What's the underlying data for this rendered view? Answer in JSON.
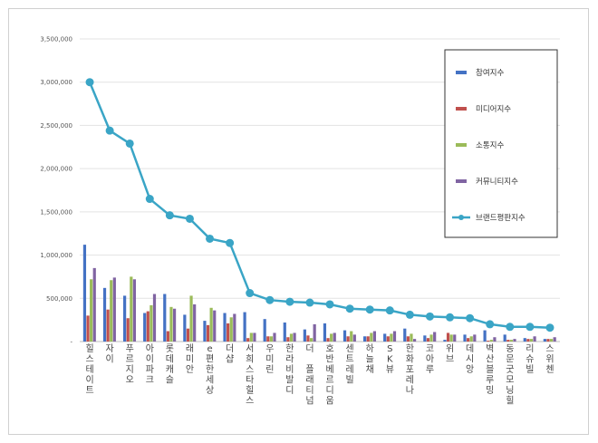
{
  "chart_data": {
    "type": "bar",
    "title": "",
    "xlabel": "",
    "ylabel": "",
    "ylim": [
      0,
      3500000
    ],
    "yticks": [
      "-",
      "500,000",
      "1,000,000",
      "1,500,000",
      "2,000,000",
      "2,500,000",
      "3,000,000",
      "3,500,000"
    ],
    "grid": true,
    "legend_position": "right",
    "categories": [
      "힐스테이트",
      "자이",
      "푸르지오",
      "아이파크",
      "롯데캐슬",
      "래미안",
      "e편한세상",
      "더샵",
      "서희스타힐스",
      "우미린",
      "한라비발디",
      "더 플래티넘",
      "호반베르디움",
      "센트레빌",
      "하늘채",
      "SK뷰",
      "한화포레나",
      "코아루",
      "위브",
      "데시앙",
      "벽산블루밍",
      "동문굿모닝힐",
      "리슈빌",
      "스위첸"
    ],
    "series": [
      {
        "name": "참여지수",
        "type": "bar",
        "color": "#4472c4",
        "values": [
          1120000,
          620000,
          530000,
          330000,
          550000,
          310000,
          240000,
          330000,
          340000,
          260000,
          220000,
          140000,
          210000,
          130000,
          60000,
          90000,
          150000,
          70000,
          20000,
          80000,
          130000,
          80000,
          40000,
          30000
        ]
      },
      {
        "name": "미디어지수",
        "type": "bar",
        "color": "#c0504d",
        "values": [
          300000,
          370000,
          270000,
          350000,
          120000,
          150000,
          190000,
          210000,
          40000,
          60000,
          50000,
          70000,
          40000,
          60000,
          60000,
          60000,
          60000,
          40000,
          100000,
          40000,
          10000,
          20000,
          30000,
          30000
        ]
      },
      {
        "name": "소통지수",
        "type": "bar",
        "color": "#9bbb59",
        "values": [
          720000,
          710000,
          750000,
          420000,
          400000,
          530000,
          390000,
          280000,
          100000,
          60000,
          90000,
          40000,
          90000,
          120000,
          100000,
          90000,
          90000,
          80000,
          80000,
          60000,
          20000,
          20000,
          30000,
          30000
        ]
      },
      {
        "name": "커뮤니티지수",
        "type": "bar",
        "color": "#8064a2",
        "values": [
          850000,
          740000,
          720000,
          550000,
          380000,
          430000,
          360000,
          320000,
          100000,
          100000,
          100000,
          200000,
          100000,
          80000,
          120000,
          120000,
          30000,
          110000,
          80000,
          80000,
          50000,
          30000,
          60000,
          50000
        ]
      },
      {
        "name": "브랜드평판지수",
        "type": "line",
        "color": "#3aa5c6",
        "values": [
          3000000,
          2440000,
          2290000,
          1650000,
          1460000,
          1420000,
          1190000,
          1140000,
          560000,
          480000,
          460000,
          450000,
          430000,
          380000,
          370000,
          360000,
          310000,
          290000,
          280000,
          270000,
          200000,
          170000,
          170000,
          160000
        ]
      }
    ]
  }
}
